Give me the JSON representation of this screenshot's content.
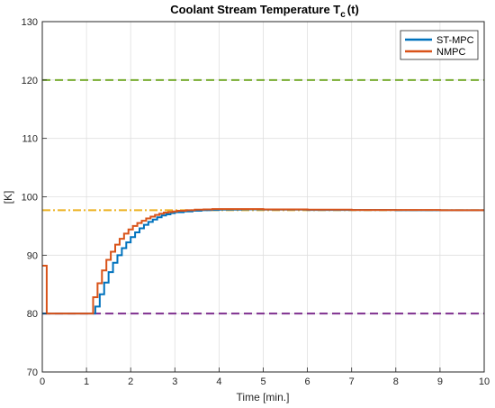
{
  "chart_data": {
    "type": "line",
    "title": "Coolant Stream Temperature T",
    "title_subscript": "c",
    "title_suffix": "(t)",
    "xlabel": "Time [min.]",
    "ylabel": "[K]",
    "xlim": [
      0,
      10
    ],
    "ylim": [
      70,
      130
    ],
    "xticks": [
      "0",
      "1",
      "2",
      "3",
      "4",
      "5",
      "6",
      "7",
      "8",
      "9",
      "10"
    ],
    "yticks": [
      "70",
      "80",
      "90",
      "100",
      "110",
      "120",
      "130"
    ],
    "grid": true,
    "legend_placement": "top-right",
    "series": [
      {
        "name": "ST-MPC",
        "color": "#0072BD",
        "style": "step",
        "x": [
          0,
          1.1,
          1.2,
          1.3,
          1.4,
          1.5,
          1.6,
          1.7,
          1.8,
          1.9,
          2.0,
          2.1,
          2.2,
          2.3,
          2.4,
          2.5,
          2.6,
          2.7,
          2.8,
          2.9,
          3.0,
          3.2,
          3.4,
          3.6,
          3.8,
          4.0,
          4.5,
          5.0,
          6.0,
          7.0,
          8.0,
          9.0,
          10.0
        ],
        "y": [
          80,
          80,
          81.2,
          83.3,
          85.3,
          87.1,
          88.7,
          90.0,
          91.2,
          92.2,
          93.1,
          93.9,
          94.6,
          95.2,
          95.7,
          96.1,
          96.5,
          96.8,
          97.0,
          97.2,
          97.35,
          97.5,
          97.6,
          97.7,
          97.75,
          97.8,
          97.85,
          97.8,
          97.75,
          97.75,
          97.7,
          97.7,
          97.7
        ]
      },
      {
        "name": "NMPC",
        "color": "#D95319",
        "style": "step",
        "x": [
          0,
          0.1,
          1.05,
          1.15,
          1.25,
          1.35,
          1.45,
          1.55,
          1.65,
          1.75,
          1.85,
          1.95,
          2.05,
          2.15,
          2.25,
          2.35,
          2.45,
          2.55,
          2.65,
          2.75,
          2.85,
          2.95,
          3.05,
          3.25,
          3.45,
          3.65,
          3.85,
          4.0,
          4.5,
          5.0,
          6.0,
          7.0,
          8.0,
          9.0,
          10.0
        ],
        "y": [
          88.2,
          80,
          80,
          82.8,
          85.2,
          87.4,
          89.2,
          90.6,
          91.8,
          92.8,
          93.7,
          94.4,
          95.0,
          95.5,
          95.9,
          96.3,
          96.6,
          96.9,
          97.1,
          97.3,
          97.4,
          97.5,
          97.6,
          97.7,
          97.8,
          97.85,
          97.9,
          97.9,
          97.9,
          97.85,
          97.8,
          97.75,
          97.75,
          97.7,
          97.7
        ]
      }
    ],
    "reference_lines": [
      {
        "label": "upper-bound",
        "y": 120,
        "color": "#77AC30",
        "dash": "dashed"
      },
      {
        "label": "setpoint",
        "y": 97.7,
        "color": "#EDB120",
        "dash": "dashdot"
      },
      {
        "label": "lower-bound",
        "y": 80,
        "color": "#7E2F8E",
        "dash": "dashed"
      }
    ]
  }
}
